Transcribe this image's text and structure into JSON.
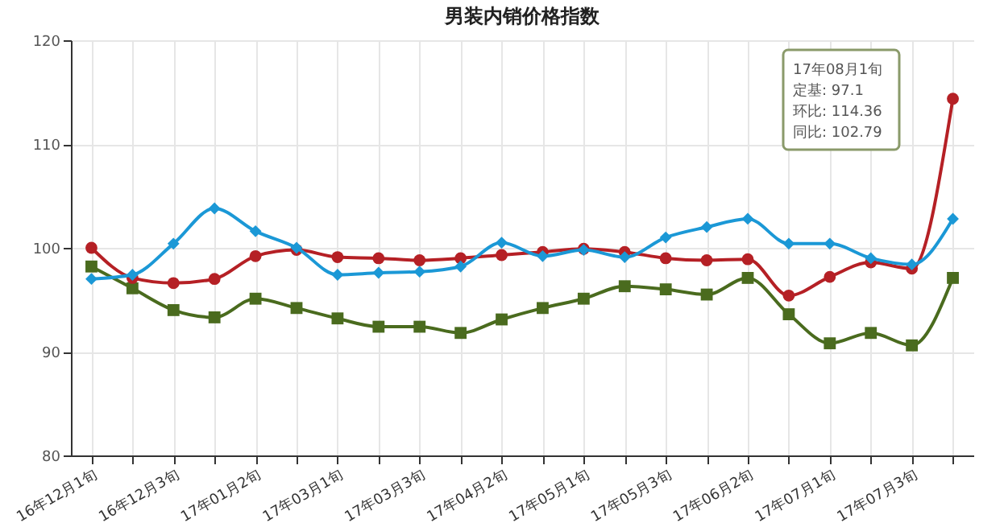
{
  "chart_data": {
    "type": "line",
    "title": "男装内销价格指数",
    "categories": [
      "16年12月1旬",
      null,
      "16年12月3旬",
      null,
      "17年01月2旬",
      null,
      "17年03月1旬",
      null,
      "17年03月3旬",
      null,
      "17年04月2旬",
      null,
      "17年05月1旬",
      null,
      "17年05月3旬",
      null,
      "17年06月2旬",
      null,
      "17年07月1旬",
      null,
      "17年07月3旬",
      null
    ],
    "series": [
      {
        "color": "#4a6b1e",
        "marker": "square",
        "values": [
          98.2,
          96.1,
          94.0,
          93.3,
          95.1,
          94.2,
          93.2,
          92.4,
          92.4,
          91.8,
          93.1,
          94.2,
          95.1,
          96.3,
          96.0,
          95.5,
          97.1,
          93.6,
          90.8,
          91.8,
          90.6,
          97.1
        ]
      },
      {
        "color": "#b52025",
        "marker": "circle",
        "values": [
          100.0,
          97.1,
          96.6,
          97.0,
          99.2,
          99.8,
          99.1,
          99.0,
          98.8,
          99.0,
          99.3,
          99.6,
          99.9,
          99.6,
          99.0,
          98.8,
          98.9,
          95.4,
          97.2,
          98.6,
          98.0,
          114.36
        ]
      },
      {
        "color": "#1b98d6",
        "marker": "diamond",
        "values": [
          97.0,
          97.4,
          100.4,
          103.8,
          101.6,
          100.0,
          97.4,
          97.6,
          97.7,
          98.2,
          100.5,
          99.2,
          99.8,
          99.1,
          101.0,
          102.0,
          102.8,
          100.4,
          100.4,
          99.0,
          98.4,
          102.79
        ]
      }
    ],
    "annotations": [
      "17年08月1旬",
      "定基: 97.1",
      "环比: 114.36",
      "同比: 102.79"
    ],
    "ylim": [
      80,
      120
    ],
    "yticks": [
      80,
      90,
      100,
      110,
      120
    ],
    "grid": true,
    "line_style": "solid"
  }
}
